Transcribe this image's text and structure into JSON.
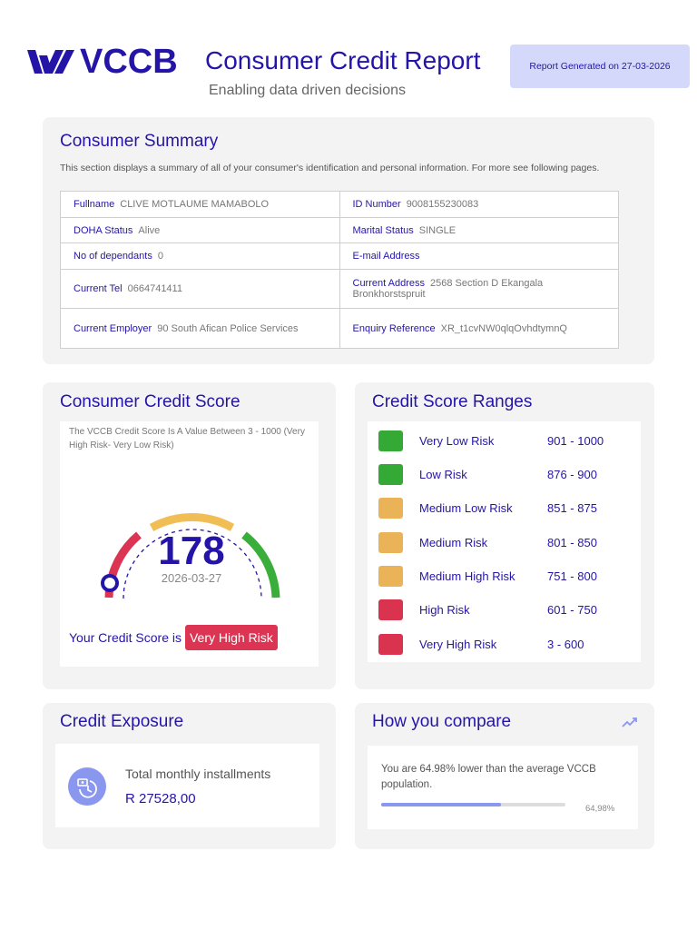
{
  "header": {
    "logo_text": "VCCB",
    "title": "Consumer Credit Report",
    "subtitle": "Enabling data driven decisions",
    "badge": "Report Generated on 27-03-2026"
  },
  "summary": {
    "title": "Consumer Summary",
    "description": "This section displays a summary of all of your consumer's identification and personal information. For more see following pages.",
    "rows": [
      [
        {
          "label": "Fullname",
          "value": "CLIVE MOTLAUME MAMABOLO"
        },
        {
          "label": "ID Number",
          "value": "9008155230083"
        }
      ],
      [
        {
          "label": "DOHA Status",
          "value": "Alive"
        },
        {
          "label": "Marital Status",
          "value": "SINGLE"
        }
      ],
      [
        {
          "label": "No of dependants",
          "value": "0"
        },
        {
          "label": "E-mail Address",
          "value": ""
        }
      ],
      [
        {
          "label": "Current Tel",
          "value": "0664741411"
        },
        {
          "label": "Current Address",
          "value": "2568 Section D Ekangala Bronkhorstspruit"
        }
      ],
      [
        {
          "label": "Current Employer",
          "value": "90 South Afican Police Services"
        },
        {
          "label": "Enquiry Reference",
          "value": "XR_t1cvNW0qlqOvhdtymnQ"
        }
      ]
    ]
  },
  "score": {
    "title": "Consumer Credit Score",
    "description": "The VCCB Credit Score Is A Value Between 3 - 1000 (Very High Risk- Very Low Risk)",
    "value": "178",
    "date": "2026-03-27",
    "label": "Your Credit Score is",
    "risk": "Very High Risk",
    "colors": {
      "red": "#dc3554",
      "yellow": "#f0be55",
      "green": "#3aae3a",
      "marker": "#2415a8"
    }
  },
  "ranges": {
    "title": "Credit Score Ranges",
    "items": [
      {
        "name": "Very Low Risk",
        "range": "901 - 1000",
        "color": "#34a936"
      },
      {
        "name": "Low Risk",
        "range": "876 - 900",
        "color": "#34a936"
      },
      {
        "name": "Medium Low Risk",
        "range": "851 - 875",
        "color": "#ebb357"
      },
      {
        "name": "Medium Risk",
        "range": "801 - 850",
        "color": "#ebb357"
      },
      {
        "name": "Medium High Risk",
        "range": "751 - 800",
        "color": "#ebb357"
      },
      {
        "name": "High Risk",
        "range": "601 - 750",
        "color": "#d9334f"
      },
      {
        "name": "Very High Risk",
        "range": "3 - 600",
        "color": "#d9334f"
      }
    ]
  },
  "exposure": {
    "title": "Credit Exposure",
    "icon": "installments-clock-icon",
    "label": "Total monthly installments",
    "value": "R 27528,00"
  },
  "compare": {
    "title": "How you compare",
    "icon": "trend-up-icon",
    "text": "You are 64.98% lower than the average VCCB population.",
    "percent_label": "64,98%",
    "percent": 64.98
  }
}
